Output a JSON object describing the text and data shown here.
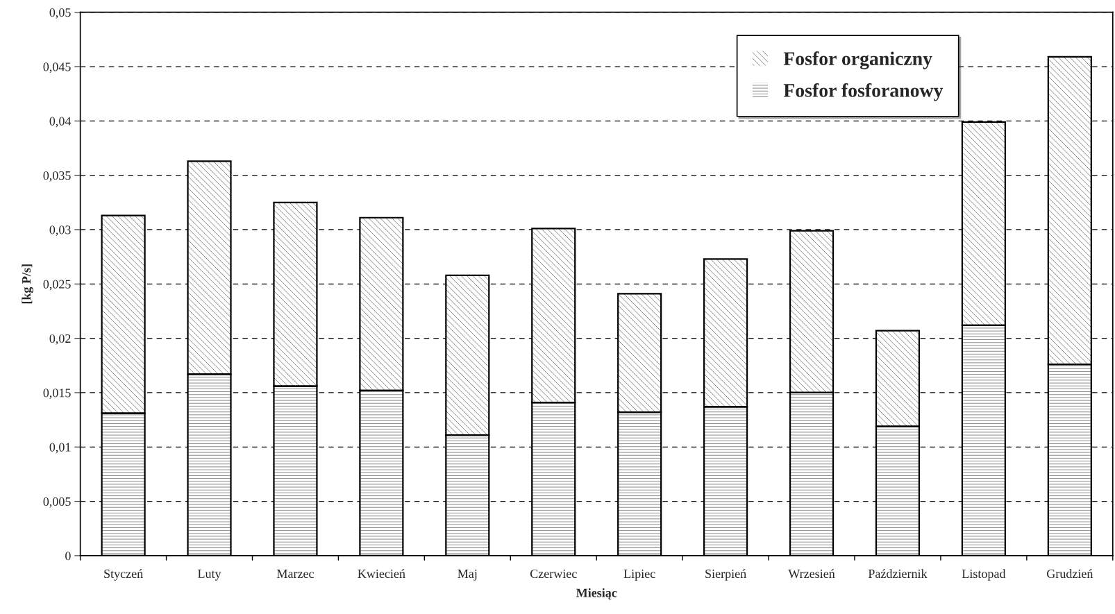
{
  "chart_data": {
    "type": "bar",
    "stacked": true,
    "xlabel": "Miesiąc",
    "ylabel": "[kg P/s]",
    "categories": [
      "Styczeń",
      "Luty",
      "Marzec",
      "Kwiecień",
      "Maj",
      "Czerwiec",
      "Lipiec",
      "Sierpień",
      "Wrzesień",
      "Październik",
      "Listopad",
      "Grudzień"
    ],
    "series": [
      {
        "name": "Fosfor fosforanowy",
        "color": "#ffffff",
        "values": [
          0.0131,
          0.0167,
          0.0156,
          0.0152,
          0.0111,
          0.0141,
          0.0132,
          0.0137,
          0.015,
          0.0119,
          0.0212,
          0.0176
        ]
      },
      {
        "name": "Fosfor organiczny",
        "color": "#ffffff",
        "values": [
          0.0182,
          0.0196,
          0.0169,
          0.0159,
          0.0147,
          0.016,
          0.0109,
          0.0136,
          0.0149,
          0.0088,
          0.0187,
          0.0283
        ]
      }
    ],
    "ylim": [
      0,
      0.05
    ],
    "yticks": [
      0,
      {
        "value": 0.005,
        "label": "0,005"
      },
      {
        "value": 0.01,
        "label": "0,01"
      },
      {
        "value": 0.015,
        "label": "0,015"
      },
      {
        "value": 0.02,
        "label": "0,02"
      },
      {
        "value": 0.025,
        "label": "0,025"
      },
      {
        "value": 0.03,
        "label": "0,03"
      },
      {
        "value": 0.035,
        "label": "0,035"
      },
      {
        "value": 0.04,
        "label": "0,04"
      },
      {
        "value": 0.045,
        "label": "0,045"
      },
      {
        "value": 0.05,
        "label": "0,05"
      }
    ],
    "grid": "y",
    "legend": "top right"
  }
}
